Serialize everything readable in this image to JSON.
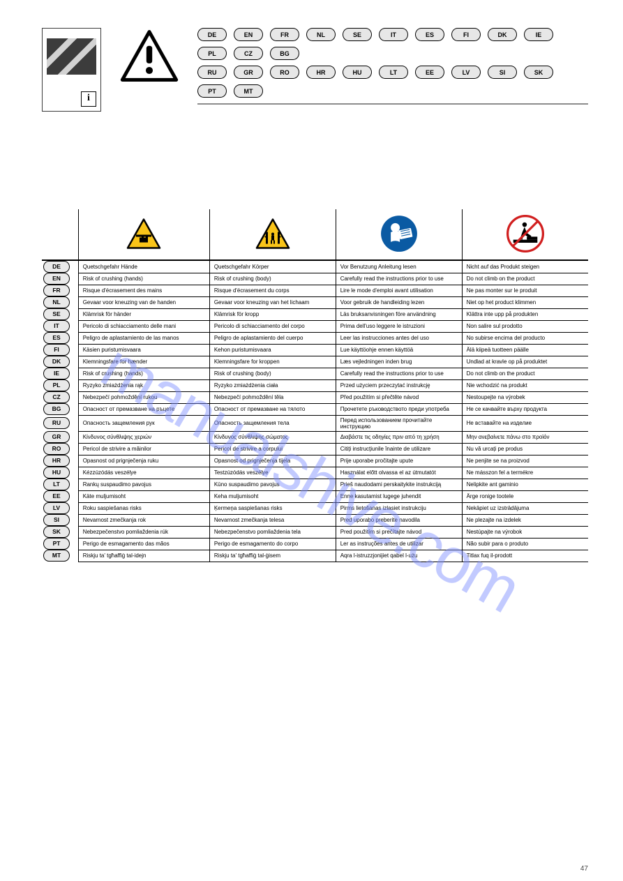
{
  "page_number": "47",
  "watermark": "manualshive.com",
  "header": {
    "info_glyph": "i",
    "lang_pills_row1": [
      "DE",
      "EN",
      "FR",
      "NL",
      "SE",
      "IT",
      "ES",
      "FI",
      "DK",
      "IE",
      "PL",
      "CZ",
      "BG"
    ],
    "lang_pills_row2": [
      "RU",
      "GR",
      "RO",
      "HR",
      "HU",
      "LT",
      "EE",
      "LV",
      "SI",
      "SK",
      "PT",
      "MT"
    ]
  },
  "icon_headers": {
    "a": "hand-crush-warning",
    "b": "body-crush-warning",
    "c": "read-manual-mandatory",
    "d": "no-climbing-prohibition"
  },
  "columns": [
    "a",
    "b",
    "c",
    "d"
  ],
  "rows": [
    {
      "lang": "DE",
      "a": "Quetschgefahr Hände",
      "b": "Quetschgefahr Körper",
      "c": "Vor Benutzung Anleitung lesen",
      "d": "Nicht auf das Produkt steigen"
    },
    {
      "lang": "EN",
      "a": "Risk of crushing (hands)",
      "b": "Risk of crushing (body)",
      "c": "Carefully read the instructions prior to use",
      "d": "Do not climb on the product"
    },
    {
      "lang": "FR",
      "a": "Risque d'écrasement des mains",
      "b": "Risque d'écrasement du corps",
      "c": "Lire le mode d'emploi avant utilisation",
      "d": "Ne pas monter sur le produit"
    },
    {
      "lang": "NL",
      "a": "Gevaar voor kneuzing van de handen",
      "b": "Gevaar voor kneuzing van het lichaam",
      "c": "Voor gebruik de handleiding lezen",
      "d": "Niet op het product klimmen"
    },
    {
      "lang": "SE",
      "a": "Klämrisk för händer",
      "b": "Klämrisk för kropp",
      "c": "Läs bruksanvisningen före användning",
      "d": "Klättra inte upp på produkten"
    },
    {
      "lang": "IT",
      "a": "Pericolo di schiacciamento delle mani",
      "b": "Pericolo di schiacciamento del corpo",
      "c": "Prima dell'uso leggere le istruzioni",
      "d": "Non salire sul prodotto"
    },
    {
      "lang": "ES",
      "a": "Peligro de aplastamiento de las manos",
      "b": "Peligro de aplastamiento del cuerpo",
      "c": "Leer las instrucciones antes del uso",
      "d": "No subirse encima del producto"
    },
    {
      "lang": "FI",
      "a": "Käsien puristumisvaara",
      "b": "Kehon puristumisvaara",
      "c": "Lue käyttöohje ennen käyttöä",
      "d": "Älä kiipeä tuotteen päälle"
    },
    {
      "lang": "DK",
      "a": "Klemningsfare for hænder",
      "b": "Klemningsfare for kroppen",
      "c": "Læs vejledningen inden brug",
      "d": "Undlad at kravle op på produktet"
    },
    {
      "lang": "IE",
      "a": "Risk of crushing (hands)",
      "b": "Risk of crushing (body)",
      "c": "Carefully read the instructions prior to use",
      "d": "Do not climb on the product"
    },
    {
      "lang": "PL",
      "a": "Ryzyko zmiażdżenia rąk",
      "b": "Ryzyko zmiażdżenia ciała",
      "c": "Przed użyciem przeczytać instrukcję",
      "d": "Nie wchodzić na produkt"
    },
    {
      "lang": "CZ",
      "a": "Nebezpečí pohmoždění rukou",
      "b": "Nebezpečí pohmoždění těla",
      "c": "Před použitím si přečtěte návod",
      "d": "Nestoupejte na výrobek"
    },
    {
      "lang": "BG",
      "a": "Опасност от премазване на ръцете",
      "b": "Опасност от премазване на тялото",
      "c": "Прочетете ръководството преди употреба",
      "d": "Не се качвайте върху продукта"
    },
    {
      "lang": "RU",
      "a": "Опасность защемления рук",
      "b": "Опасность защемления тела",
      "c": "Перед использованием прочитайте инструкцию",
      "d": "Не вставайте на изделие"
    },
    {
      "lang": "GR",
      "a": "Κίνδυνος σύνθλιψης χεριών",
      "b": "Κίνδυνος σύνθλιψης σώματος",
      "c": "Διαβάστε τις οδηγίες πριν από τη χρήση",
      "d": "Μην ανεβαίνετε πάνω στο προϊόν"
    },
    {
      "lang": "RO",
      "a": "Pericol de strivire a mâinilor",
      "b": "Pericol de strivire a corpului",
      "c": "Citiți instrucțiunile înainte de utilizare",
      "d": "Nu vă urcați pe produs"
    },
    {
      "lang": "HR",
      "a": "Opasnost od prignječenja ruku",
      "b": "Opasnost od prignječenja tijela",
      "c": "Prije uporabe pročitajte upute",
      "d": "Ne penjite se na proizvod"
    },
    {
      "lang": "HU",
      "a": "Kézzúzódás veszélye",
      "b": "Testzúzódás veszélye",
      "c": "Használat előtt olvassa el az útmutatót",
      "d": "Ne másszon fel a termékre"
    },
    {
      "lang": "LT",
      "a": "Rankų suspaudimo pavojus",
      "b": "Kūno suspaudimo pavojus",
      "c": "Prieš naudodami perskaitykite instrukciją",
      "d": "Nelipkite ant gaminio"
    },
    {
      "lang": "EE",
      "a": "Käte muljumisoht",
      "b": "Keha muljumisoht",
      "c": "Enne kasutamist lugege juhendit",
      "d": "Ärge ronige tootele"
    },
    {
      "lang": "LV",
      "a": "Roku saspiešanas risks",
      "b": "Ķermeņa saspiešanas risks",
      "c": "Pirms lietošanas izlasiet instrukciju",
      "d": "Nekāpiet uz izstrādājuma"
    },
    {
      "lang": "SI",
      "a": "Nevarnost zmečkanja rok",
      "b": "Nevarnost zmečkanja telesa",
      "c": "Pred uporabo preberite navodila",
      "d": "Ne plezajte na izdelek"
    },
    {
      "lang": "SK",
      "a": "Nebezpečenstvo pomliaždenia rúk",
      "b": "Nebezpečenstvo pomliaždenia tela",
      "c": "Pred použitím si prečítajte návod",
      "d": "Nestúpajte na výrobok"
    },
    {
      "lang": "PT",
      "a": "Perigo de esmagamento das mãos",
      "b": "Perigo de esmagamento do corpo",
      "c": "Ler as instruções antes de utilizar",
      "d": "Não subir para o produto"
    },
    {
      "lang": "MT",
      "a": "Riskju ta' tgħaffiġ tal-idejn",
      "b": "Riskju ta' tgħaffiġ tal-ġisem",
      "c": "Aqra l-istruzzjonijiet qabel l-użu",
      "d": "Titlax fuq il-prodott"
    }
  ],
  "colors": {
    "warn_yellow": "#f9c419",
    "mandatory_blue": "#0a5aa3",
    "prohibit_red": "#d11f1f",
    "pill_bg": "#e7e7e7",
    "watermark": "#7a8cff"
  }
}
